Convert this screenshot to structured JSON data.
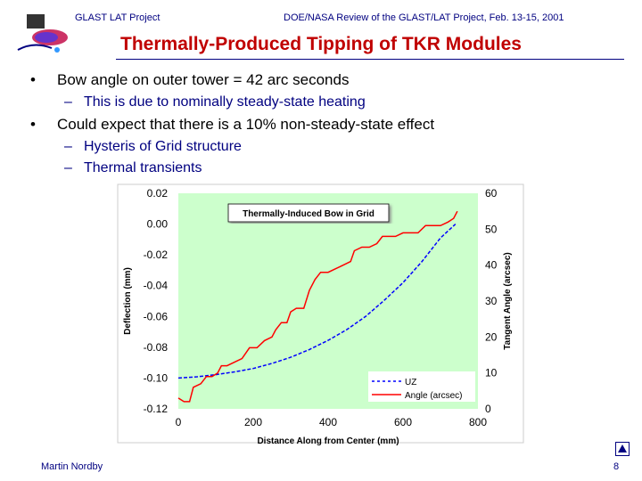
{
  "header": {
    "left": "GLAST LAT Project",
    "right": "DOE/NASA Review of the GLAST/LAT Project, Feb. 13-15, 2001"
  },
  "slide": {
    "title": "Thermally-Produced Tipping of TKR Modules",
    "bullets": [
      {
        "text": "Bow angle on outer tower = 42 arc seconds",
        "subs": [
          "This is due to nominally steady-state heating"
        ]
      },
      {
        "text": "Could expect that there is a 10% non-steady-state effect",
        "subs": [
          "Hysteris of Grid structure",
          "Thermal transients"
        ]
      }
    ]
  },
  "footer": {
    "author": "Martin Nordby",
    "page": "8"
  },
  "colors": {
    "accent": "#c00000",
    "navy": "#000080",
    "plot_bg": "#ccffcc",
    "uz": "#0000ff",
    "angle": "#ff0000"
  },
  "chart_data": {
    "type": "line",
    "title": "Thermally-Induced Bow in Grid",
    "xlabel": "Distance Along from Center (mm)",
    "ylabel": "Deflection (mm)",
    "y2label": "Tangent Angle (arcsec)",
    "xlim": [
      0,
      800
    ],
    "ylim": [
      -0.12,
      0.02
    ],
    "y2lim": [
      0,
      60
    ],
    "x_ticks": [
      "0",
      "200",
      "400",
      "600",
      "800"
    ],
    "y_ticks": [
      "0.02",
      "0.00",
      "-0.02",
      "-0.04",
      "-0.06",
      "-0.08",
      "-0.10",
      "-0.12"
    ],
    "y2_ticks": [
      "60",
      "50",
      "40",
      "30",
      "20",
      "10",
      "0"
    ],
    "grid": false,
    "legend_position": "bottom-right",
    "series": [
      {
        "name": "UZ",
        "axis": "left",
        "style": "dashed",
        "color": "#0000ff",
        "x": [
          0,
          50,
          100,
          150,
          200,
          250,
          300,
          350,
          400,
          450,
          500,
          550,
          600,
          650,
          700,
          740
        ],
        "y": [
          -0.1,
          -0.0992,
          -0.0978,
          -0.096,
          -0.0938,
          -0.0905,
          -0.0865,
          -0.0815,
          -0.0755,
          -0.0685,
          -0.06,
          -0.0495,
          -0.038,
          -0.0245,
          -0.009,
          0.0
        ]
      },
      {
        "name": "Angle (arcsec)",
        "axis": "right",
        "style": "solid",
        "color": "#ff0000",
        "x": [
          0,
          15,
          30,
          40,
          60,
          75,
          90,
          105,
          115,
          130,
          150,
          170,
          190,
          210,
          230,
          250,
          260,
          275,
          290,
          300,
          315,
          335,
          350,
          365,
          380,
          400,
          420,
          440,
          460,
          470,
          490,
          510,
          530,
          545,
          560,
          580,
          600,
          620,
          640,
          660,
          680,
          700,
          720,
          735,
          745
        ],
        "y": [
          3,
          2,
          2,
          6,
          7,
          9,
          9,
          10,
          12,
          12,
          13,
          14,
          17,
          17,
          19,
          20,
          22,
          24,
          24,
          27,
          28,
          28,
          33,
          36,
          38,
          38,
          39,
          40,
          41,
          44,
          45,
          45,
          46,
          48,
          48,
          48,
          49,
          49,
          49,
          51,
          51,
          51,
          52,
          53,
          55
        ]
      }
    ]
  }
}
